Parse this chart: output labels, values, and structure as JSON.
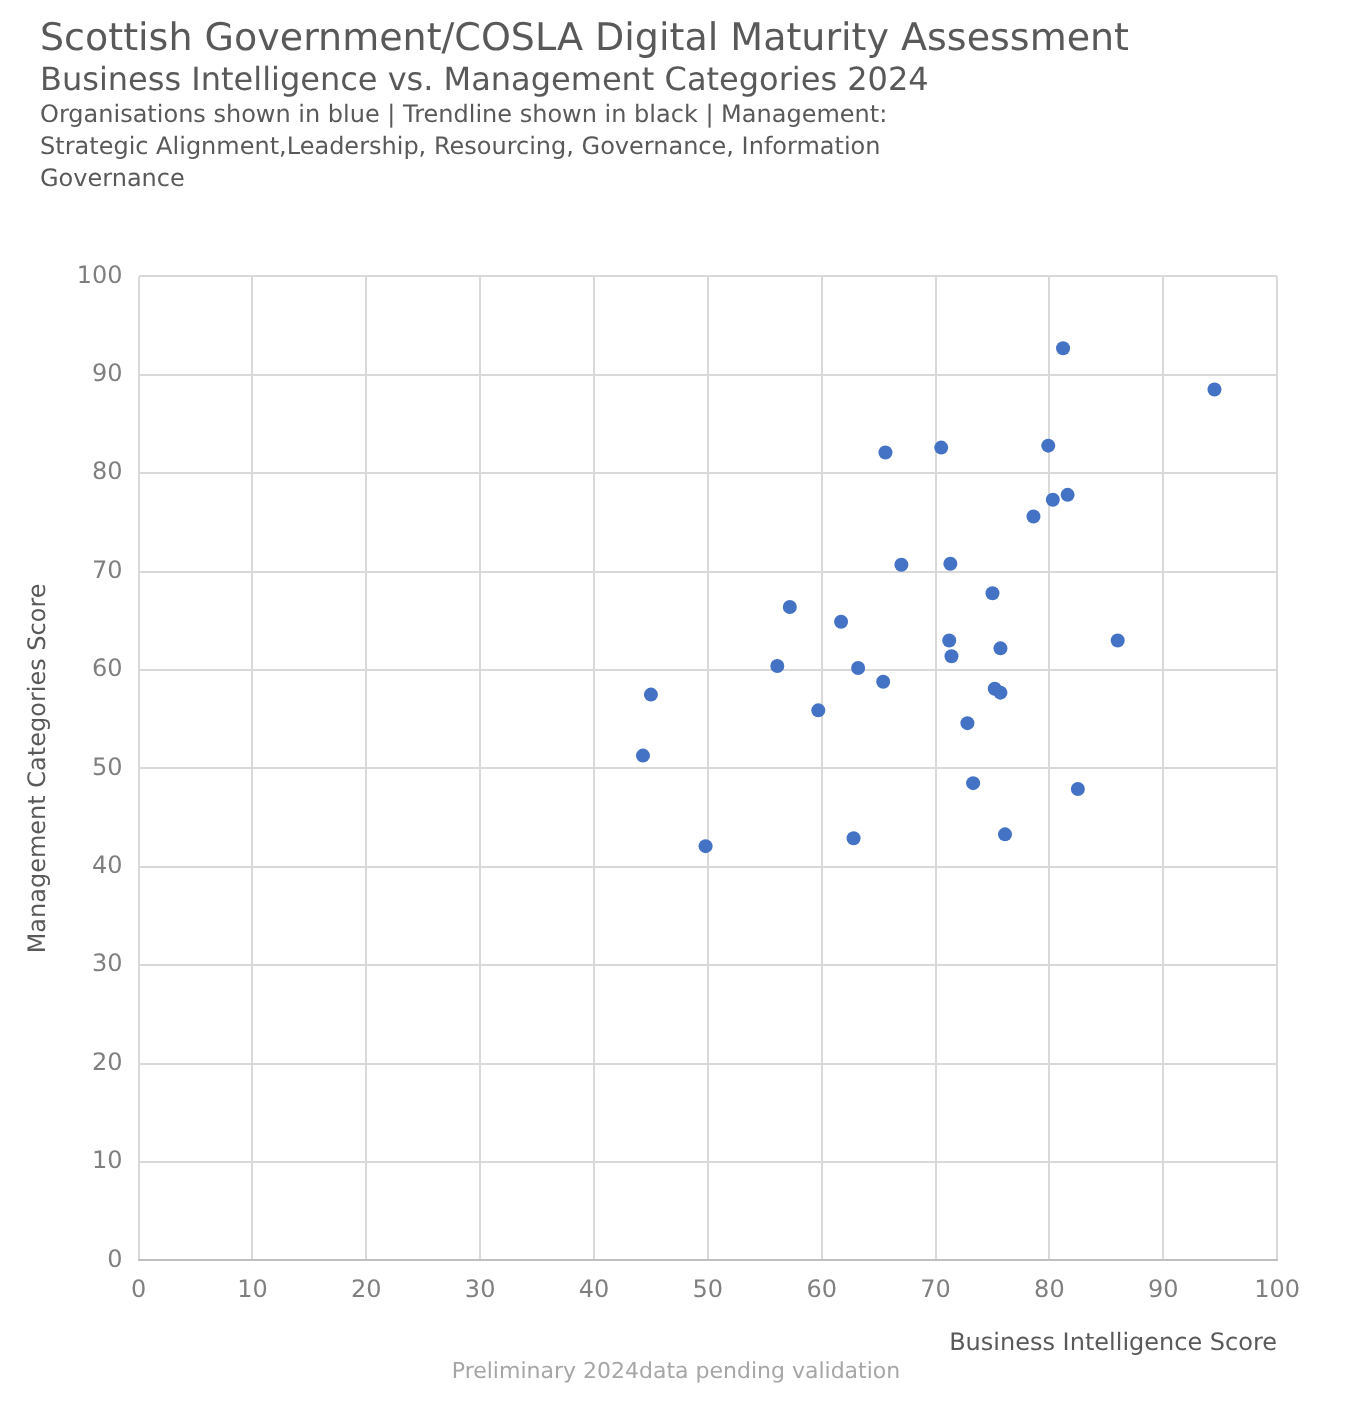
{
  "chart_data": {
    "type": "scatter",
    "title": "Scottish Government/COSLA Digital Maturity Assessment",
    "subtitle": "Business Intelligence vs. Management Categories 2024",
    "xlabel": "Business Intelligence Score",
    "ylabel": "Management Categories Score",
    "annotations": [
      "Organisations shown in blue | Trendline shown in black | Management: Strategic Alignment,Leadership, Resourcing, Governance, Information Governance",
      "Preliminary 2024data pending validation"
    ],
    "x": [
      81.2,
      94.5,
      65.6,
      70.5,
      79.9,
      81.6,
      80.3,
      78.6,
      67,
      71.3,
      75,
      57.2,
      61.7,
      71.2,
      86,
      75.7,
      71.4,
      56.1,
      63.2,
      65.4,
      75.2,
      75.7,
      45,
      59.7,
      72.8,
      44.3,
      73.3,
      82.5,
      49.8,
      62.8,
      76.1
    ],
    "values": [
      92.7,
      88.5,
      82.1,
      82.6,
      82.8,
      77.8,
      77.3,
      75.6,
      70.7,
      70.8,
      67.8,
      66.4,
      64.9,
      63,
      63,
      62.2,
      61.4,
      60.4,
      60.2,
      58.8,
      58.1,
      57.7,
      57.5,
      55.9,
      54.6,
      51.3,
      48.5,
      47.9,
      42.1,
      42.9,
      43.3
    ],
    "color": "#4472c4",
    "marker": "circle",
    "grid": true,
    "xlim": [
      0,
      100
    ],
    "xticks": [
      0,
      10,
      20,
      30,
      40,
      50,
      60,
      70,
      80,
      90,
      100
    ],
    "ylim": [
      0,
      100
    ],
    "yticks": [
      0,
      10,
      20,
      30,
      40,
      50,
      60,
      70,
      80,
      90,
      100
    ]
  }
}
